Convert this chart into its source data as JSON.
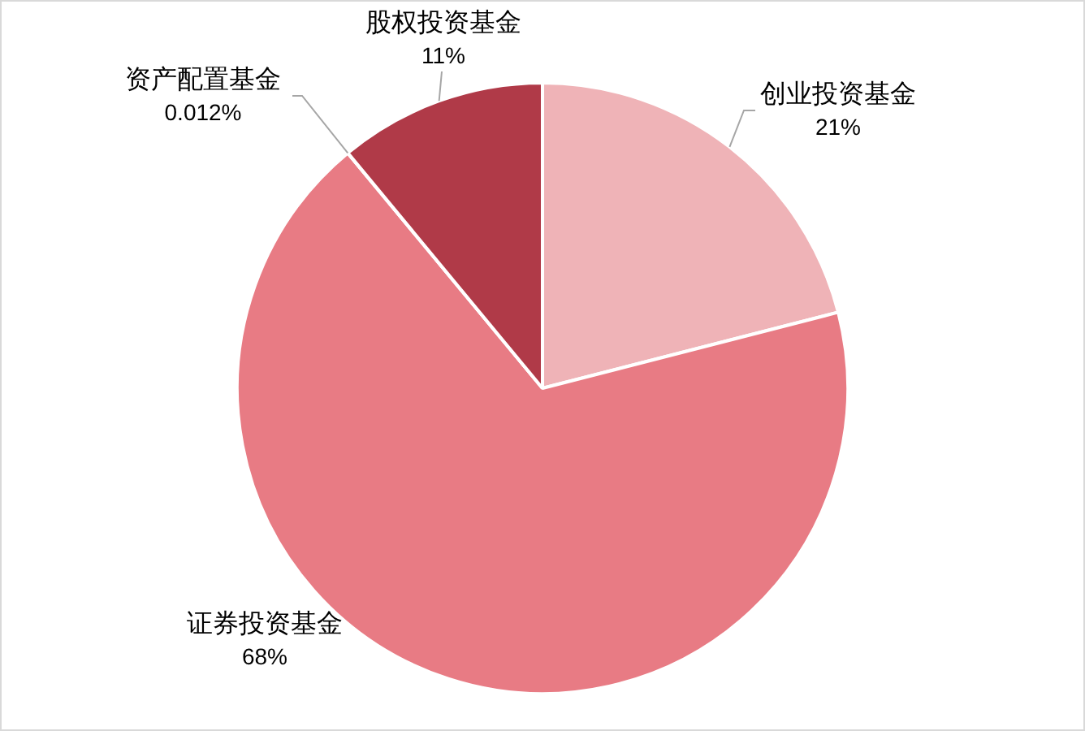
{
  "chart_data": {
    "type": "pie",
    "categories": [
      "创业投资基金",
      "证券投资基金",
      "资产配置基金",
      "股权投资基金"
    ],
    "values": [
      21,
      68,
      0.012,
      11
    ],
    "colors": [
      "#efb3b7",
      "#e87b84",
      "#e87b84",
      "#b03a48"
    ],
    "value_labels": [
      "21%",
      "68%",
      "0.012%",
      "11%"
    ],
    "legend": false
  }
}
